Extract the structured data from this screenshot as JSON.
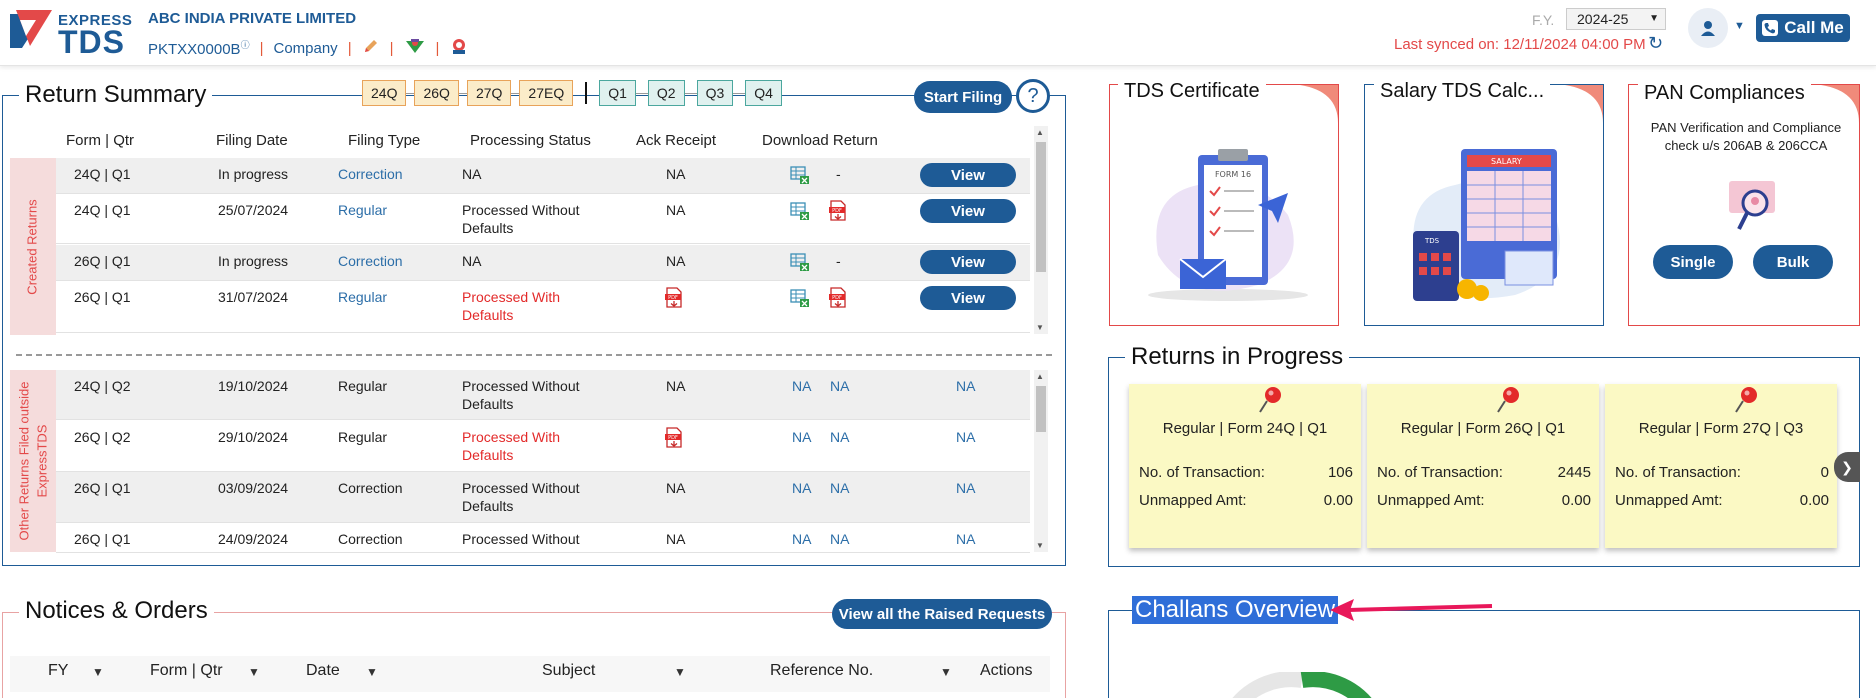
{
  "header": {
    "logo_top": "EXPRESS",
    "logo_bottom": "TDS",
    "company_name": "ABC INDIA PRIVATE LIMITED",
    "pan": "PKTXX0000B",
    "entity_type": "Company",
    "fy_label": "F.Y.",
    "fy_value": "2024-25",
    "last_synced": "Last synced on: 12/11/2024 04:00 PM",
    "call_me": "Call Me"
  },
  "return_summary": {
    "title": "Return Summary",
    "forms": [
      "24Q",
      "26Q",
      "27Q",
      "27EQ"
    ],
    "quarters": [
      "Q1",
      "Q2",
      "Q3",
      "Q4"
    ],
    "start_filing": "Start Filing",
    "help": "?",
    "columns": [
      "Form | Qtr",
      "Filing Date",
      "Filing Type",
      "Processing Status",
      "Ack Receipt",
      "Download Return"
    ],
    "created_label": "Created Returns",
    "other_label_1": "Other Returns Filed outside",
    "other_label_2": "ExpressTDS",
    "view_label": "View",
    "created_rows": [
      {
        "form_qtr": "24Q | Q1",
        "date": "In progress",
        "type": "Correction",
        "status_1": "NA",
        "status_2": "",
        "ack": "NA",
        "dl_dash": "-"
      },
      {
        "form_qtr": "24Q | Q1",
        "date": "25/07/2024",
        "type": "Regular",
        "status_1": "Processed Without",
        "status_2": "Defaults",
        "ack": "NA",
        "dl_dash": ""
      },
      {
        "form_qtr": "26Q | Q1",
        "date": "In progress",
        "type": "Correction",
        "status_1": "NA",
        "status_2": "",
        "ack": "NA",
        "dl_dash": "-"
      },
      {
        "form_qtr": "26Q | Q1",
        "date": "31/07/2024",
        "type": "Regular",
        "status_1": "Processed With",
        "status_2": "Defaults",
        "ack": "",
        "dl_dash": ""
      }
    ],
    "other_rows": [
      {
        "form_qtr": "24Q | Q2",
        "date": "19/10/2024",
        "type": "Regular",
        "status_1": "Processed Without",
        "status_2": "Defaults",
        "ack": "NA",
        "dl1": "NA",
        "dl2": "NA",
        "dl3": "NA"
      },
      {
        "form_qtr": "26Q | Q2",
        "date": "29/10/2024",
        "type": "Regular",
        "status_1": "Processed With",
        "status_2": "Defaults",
        "ack": "",
        "dl1": "NA",
        "dl2": "NA",
        "dl3": "NA"
      },
      {
        "form_qtr": "26Q | Q1",
        "date": "03/09/2024",
        "type": "Correction",
        "status_1": "Processed Without",
        "status_2": "Defaults",
        "ack": "NA",
        "dl1": "NA",
        "dl2": "NA",
        "dl3": "NA"
      },
      {
        "form_qtr": "26Q | Q1",
        "date": "24/09/2024",
        "type": "Correction",
        "status_1": "Processed Without",
        "status_2": "",
        "ack": "NA",
        "dl1": "NA",
        "dl2": "NA",
        "dl3": "NA"
      }
    ]
  },
  "notices": {
    "title": "Notices & Orders",
    "view_all": "View all the Raised Requests",
    "columns": [
      "FY",
      "Form | Qtr",
      "Date",
      "Subject",
      "Reference No.",
      "Actions"
    ]
  },
  "cards": {
    "tds_certificate": "TDS Certificate",
    "form16_label": "FORM 16",
    "salary_calc": "Salary TDS Calc...",
    "salary_label": "SALARY",
    "tds_label": "TDS",
    "pan_title": "PAN Compliances",
    "pan_desc_1": "PAN Verification and Compliance",
    "pan_desc_2": "check u/s 206AB & 206CCA",
    "single": "Single",
    "bulk": "Bulk"
  },
  "returns_in_progress": {
    "title": "Returns in Progress",
    "txn_label": "No. of Transaction:",
    "unmapped_label": "Unmapped Amt:",
    "items": [
      {
        "head": "Regular | Form 24Q | Q1",
        "txn": "106",
        "amt": "0.00"
      },
      {
        "head": "Regular | Form 26Q | Q1",
        "txn": "2445",
        "amt": "0.00"
      },
      {
        "head": "Regular | Form 27Q | Q3",
        "txn": "0",
        "amt": "0.00"
      }
    ]
  },
  "challans": {
    "title": "Challans Overview"
  },
  "colors": {
    "brand_blue": "#1e5b96",
    "accent_red": "#e34949",
    "chip_orange": "#fbecc9",
    "chip_teal": "#e0f1ef",
    "card_yellow": "#fbf9c4"
  }
}
